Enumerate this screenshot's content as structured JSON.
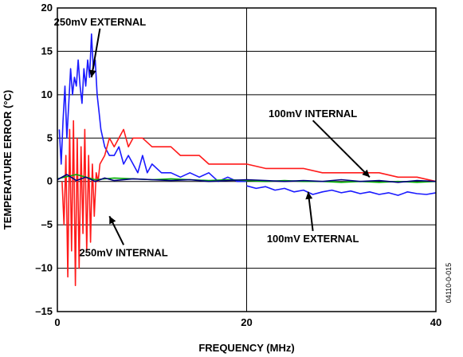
{
  "chart_data": {
    "type": "line",
    "title": "",
    "xlabel": "FREQUENCY (MHz)",
    "ylabel": "TEMPERATURE ERROR (°C)",
    "xlim": [
      0,
      40
    ],
    "ylim": [
      -15,
      20
    ],
    "xticks": [
      0,
      20,
      40
    ],
    "yticks": [
      -15,
      -10,
      -5,
      0,
      5,
      10,
      15,
      20
    ],
    "grid": true,
    "figure_id": "04110-0-015",
    "colors": {
      "blue": "#1a1aff",
      "red": "#ff1a1a",
      "green": "#00b000",
      "navy": "#000080"
    },
    "series": [
      {
        "color": "blue",
        "x": [
          0.2,
          0.4,
          0.6,
          0.8,
          1.0,
          1.2,
          1.4,
          1.6,
          1.8,
          2.0,
          2.2,
          2.4,
          2.6,
          2.8,
          3.0,
          3.2,
          3.4,
          3.6,
          3.8,
          4.0,
          4.2,
          4.4,
          4.6,
          4.8,
          5.0,
          5.5,
          6.0,
          6.5,
          7.0,
          7.5,
          8.0,
          8.5,
          9.0,
          9.5,
          10.0,
          11,
          12,
          13,
          14,
          15,
          16,
          17,
          18,
          19,
          20
        ],
        "y": [
          6,
          2,
          7,
          11,
          5,
          9,
          13,
          10,
          12,
          11,
          14,
          11,
          9,
          13,
          11,
          14,
          12,
          17,
          13,
          14,
          10,
          8,
          6,
          5,
          4,
          3,
          3,
          4,
          2,
          3,
          2,
          1,
          3,
          1,
          2,
          1,
          1,
          0.5,
          1,
          0.5,
          1,
          0,
          0.5,
          0,
          0
        ]
      },
      {
        "color": "red",
        "x": [
          0.5,
          0.7,
          0.9,
          1.1,
          1.3,
          1.5,
          1.7,
          1.9,
          2.1,
          2.3,
          2.5,
          2.7,
          2.9,
          3.1,
          3.3,
          3.5,
          3.7,
          3.9,
          4.1,
          4.3,
          4.5,
          5,
          5.5,
          6,
          6.5,
          7,
          7.5,
          8,
          9,
          10,
          11,
          12,
          13,
          14,
          15,
          16,
          17,
          18,
          19,
          20,
          22,
          24,
          26,
          28,
          30,
          32,
          34,
          36,
          38,
          40
        ],
        "y": [
          0,
          -5,
          3,
          -11,
          6,
          -8,
          7,
          -12,
          5,
          -10,
          4,
          -6,
          6,
          -8,
          3,
          -7,
          2,
          -4,
          1,
          0,
          2,
          3,
          5,
          4,
          5,
          6,
          4,
          5,
          5,
          4,
          4,
          4,
          3,
          3,
          3,
          2,
          2,
          2,
          2,
          2,
          1.5,
          1.5,
          1.5,
          1,
          1,
          1,
          1,
          0.5,
          0.5,
          0
        ]
      },
      {
        "color": "green",
        "x": [
          0,
          2,
          4,
          6,
          8,
          10,
          12,
          14,
          16,
          18,
          20,
          22,
          24,
          26,
          28,
          30,
          32,
          34,
          36,
          38,
          40
        ],
        "y": [
          0.3,
          0.8,
          0.2,
          0.4,
          0.3,
          0.2,
          0.3,
          0.2,
          0.1,
          0.2,
          0.1,
          0,
          0.1,
          0,
          0,
          -0.1,
          0,
          -0.1,
          0,
          -0.1,
          0
        ]
      },
      {
        "color": "navy",
        "x": [
          0,
          1,
          2,
          3,
          4,
          5,
          6,
          8,
          10,
          12,
          14,
          16,
          18,
          20,
          22,
          24,
          26,
          28,
          30,
          32,
          34,
          36,
          38,
          40
        ],
        "y": [
          0.2,
          0.8,
          0.1,
          0.5,
          0,
          0.4,
          0.1,
          0.3,
          0.2,
          0.1,
          0.2,
          0,
          0.1,
          0.2,
          0.1,
          0,
          0.1,
          0,
          0.2,
          0,
          0.1,
          -0.1,
          0.1,
          0
        ]
      },
      {
        "color": "blue",
        "x": [
          20,
          21,
          22,
          23,
          24,
          25,
          26,
          27,
          28,
          29,
          30,
          31,
          32,
          33,
          34,
          35,
          36,
          37,
          38,
          39,
          40
        ],
        "y": [
          -0.5,
          -0.8,
          -0.6,
          -1,
          -0.8,
          -1.2,
          -1,
          -1.5,
          -1.2,
          -1,
          -1.3,
          -1.1,
          -1.4,
          -1.2,
          -1.5,
          -1.3,
          -1.6,
          -1.2,
          -1.4,
          -1.5,
          -1.3
        ]
      }
    ],
    "annotations": [
      {
        "text": "250mV EXTERNAL",
        "x": 4.5,
        "y": 18,
        "arrow_to": [
          3.6,
          12
        ]
      },
      {
        "text": "100mV INTERNAL",
        "x": 27,
        "y": 7.4,
        "arrow_to": [
          33,
          0.5
        ]
      },
      {
        "text": "250mV INTERNAL",
        "x": 7,
        "y": -8.6,
        "arrow_to": [
          5.5,
          -4
        ]
      },
      {
        "text": "100mV EXTERNAL",
        "x": 27,
        "y": -7.0,
        "arrow_to": [
          26.5,
          -1.2
        ]
      }
    ]
  }
}
